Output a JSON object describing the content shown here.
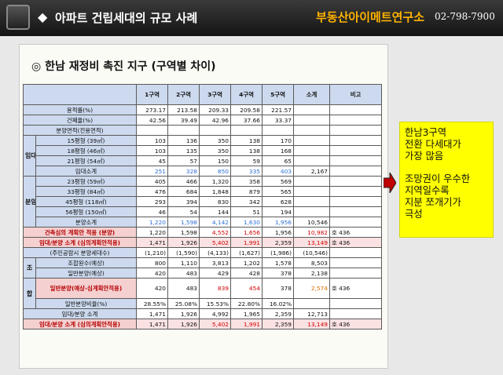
{
  "header": {
    "title": "아파트 건립세대의 규모 사례",
    "brand": "부동산아이메트연구소",
    "phone": "02-798-7900"
  },
  "subtitle": "◎ 한남 재정비 촉진 지구 (구역별 차이)",
  "table": {
    "columns": [
      "",
      "",
      "1구역",
      "2구역",
      "3구역",
      "4구역",
      "5구역",
      "소계",
      "비고"
    ],
    "rows": {
      "far": {
        "label": "용적률(%)",
        "v": [
          "273.17",
          "213.58",
          "209.33",
          "209.58",
          "221.57",
          "",
          ""
        ]
      },
      "bcr": {
        "label": "건폐율(%)",
        "v": [
          "42.56",
          "39.49",
          "42.96",
          "37.66",
          "33.37",
          "",
          ""
        ]
      },
      "area_hdr": {
        "label": "분양면적(전용면적)"
      },
      "sale1": {
        "label": "15평형 (39㎡)",
        "v": [
          "103",
          "136",
          "350",
          "138",
          "170",
          "",
          ""
        ]
      },
      "sale2": {
        "label": "18평형 (46㎡)",
        "v": [
          "103",
          "135",
          "350",
          "138",
          "168",
          "",
          ""
        ]
      },
      "sale3": {
        "label": "21평형 (54㎡)",
        "v": [
          "45",
          "57",
          "150",
          "59",
          "65",
          "",
          ""
        ]
      },
      "sale_sub": {
        "label": "임대소계",
        "v": [
          "251",
          "328",
          "850",
          "335",
          "403",
          "2,167",
          ""
        ]
      },
      "rent1": {
        "label": "23평형 (59㎡)",
        "v": [
          "405",
          "466",
          "1,320",
          "358",
          "569",
          "",
          ""
        ]
      },
      "rent2": {
        "label": "33평형 (84㎡)",
        "v": [
          "476",
          "684",
          "1,848",
          "879",
          "565",
          "",
          ""
        ]
      },
      "rent3": {
        "label": "45평형 (118㎡)",
        "v": [
          "293",
          "394",
          "830",
          "342",
          "628",
          "",
          ""
        ]
      },
      "rent4": {
        "label": "56평형 (150㎡)",
        "v": [
          "46",
          "54",
          "144",
          "51",
          "194",
          "",
          ""
        ]
      },
      "rent_sub": {
        "label": "분양소계",
        "v": [
          "1,220",
          "1,598",
          "4,142",
          "1,630",
          "1,956",
          "10,546",
          ""
        ]
      },
      "apply": {
        "label": "건축심의 계획안 적용 (분양)",
        "v": [
          "1,220",
          "1,598",
          "4,552",
          "1,656",
          "1,956",
          "10,982",
          "호 436"
        ]
      },
      "total1": {
        "label": "임대/분양 소계 (심의계획안적용)",
        "v": [
          "1,471",
          "1,926",
          "5,402",
          "1,991",
          "2,359",
          "13,149",
          "호 436"
        ]
      },
      "diff": {
        "label": "(주민공람시 분양세대수)",
        "v": [
          "(1,210)",
          "(1,590)",
          "(4,133)",
          "(1,627)",
          "(1,986)",
          "(10,546)",
          ""
        ]
      },
      "pA": {
        "label": "조합원수(예상)",
        "v": [
          "800",
          "1,110",
          "3,813",
          "1,202",
          "1,578",
          "8,503",
          ""
        ]
      },
      "pB": {
        "label": "일반분양(예상)",
        "v": [
          "420",
          "483",
          "429",
          "428",
          "378",
          "2,138",
          ""
        ]
      },
      "pC": {
        "label": "일반분양(예상-심계획안적용)",
        "v": [
          "420",
          "483",
          "839",
          "454",
          "378",
          "2,574",
          "호 436"
        ]
      },
      "pD": {
        "label": "일반분양비율(%)",
        "v": [
          "28.55%",
          "25.08%",
          "15.53%",
          "22.80%",
          "16.02%",
          "",
          ""
        ]
      },
      "total2": {
        "label": "임대/분양 소계",
        "v": [
          "1,471",
          "1,926",
          "4,992",
          "1,965",
          "2,359",
          "12,713",
          ""
        ]
      },
      "total3": {
        "label": "임대/분양 소계 (심의계획안적용)",
        "v": [
          "1,471",
          "1,926",
          "5,402",
          "1,991",
          "2,359",
          "13,149",
          "호 436"
        ]
      }
    },
    "groups": {
      "rental": "임대",
      "sale": "분양",
      "partA": "조",
      "partB": "합"
    }
  },
  "callout": {
    "line1": "한남3구역",
    "line2": "전환 다세대가",
    "line3": "가장 많음",
    "line4": "조망권이 우수한",
    "line5": "지역일수록",
    "line6": "지분 쪼개기가",
    "line7": "극성"
  },
  "colors": {
    "accent": "#ffb300",
    "header_cell": "#ccd9ee",
    "highlight": "#f5d0d0",
    "callout": "#ffff00",
    "blue_text": "#2e6fd6",
    "red_text": "#d20000"
  }
}
